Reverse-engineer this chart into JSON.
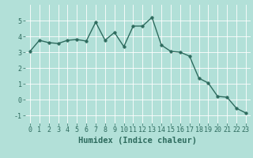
{
  "x": [
    0,
    1,
    2,
    3,
    4,
    5,
    6,
    7,
    8,
    9,
    10,
    11,
    12,
    13,
    14,
    15,
    16,
    17,
    18,
    19,
    20,
    21,
    22,
    23
  ],
  "y": [
    3.05,
    3.75,
    3.6,
    3.55,
    3.75,
    3.8,
    3.7,
    4.9,
    3.75,
    4.25,
    3.35,
    4.65,
    4.65,
    5.2,
    3.45,
    3.05,
    3.0,
    2.75,
    1.35,
    1.05,
    0.2,
    0.15,
    -0.55,
    -0.85
  ],
  "line_color": "#2e6b5e",
  "marker_color": "#2e6b5e",
  "bg_color": "#b2e0d8",
  "grid_color": "#ffffff",
  "xlabel": "Humidex (Indice chaleur)",
  "ylim": [
    -1.5,
    6.0
  ],
  "xlim": [
    -0.5,
    23.5
  ],
  "yticks": [
    -1,
    0,
    1,
    2,
    3,
    4,
    5
  ],
  "xticks": [
    0,
    1,
    2,
    3,
    4,
    5,
    6,
    7,
    8,
    9,
    10,
    11,
    12,
    13,
    14,
    15,
    16,
    17,
    18,
    19,
    20,
    21,
    22,
    23
  ],
  "tick_label_fontsize": 6,
  "xlabel_fontsize": 7.5,
  "linewidth": 1.0,
  "markersize": 2.5
}
